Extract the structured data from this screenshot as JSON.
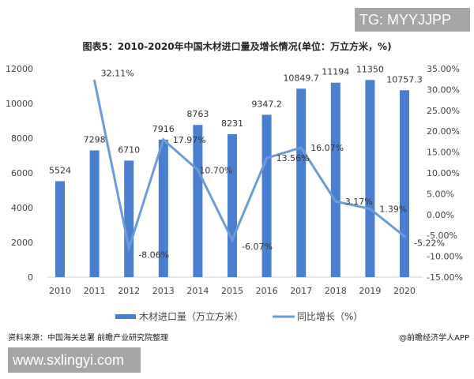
{
  "watermark_top": "TG: MYYJJPP",
  "watermark_bottom": "www.sxlingyi.com",
  "source": "资料来源：中国海关总署 前瞻产业研究院整理",
  "credit": "@前瞻经济学人APP",
  "chart_data": {
    "type": "bar+line",
    "title": "图表5：2010-2020年中国木材进口量及增长情况(单位：万立方米，%)",
    "categories": [
      "2010",
      "2011",
      "2012",
      "2013",
      "2014",
      "2015",
      "2016",
      "2017",
      "2018",
      "2019",
      "2020"
    ],
    "series": [
      {
        "name": "木材进口量（万立方米）",
        "type": "bar",
        "axis": "left",
        "color": "#4a7fd0",
        "values": [
          5524,
          7298,
          6710,
          7916,
          8763,
          8231,
          9347.2,
          10849.7,
          11194,
          11350,
          10757.3
        ],
        "labels": [
          "5524",
          "7298",
          "6710",
          "7916",
          "8763",
          "8231",
          "9347.2",
          "10849.7",
          "11194",
          "11350",
          "10757.3"
        ]
      },
      {
        "name": "同比增长（%）",
        "type": "line",
        "axis": "right",
        "color": "#6b9bd8",
        "values": [
          null,
          32.11,
          -8.06,
          17.97,
          10.7,
          -6.07,
          13.56,
          16.07,
          3.17,
          1.39,
          -5.22
        ],
        "labels": [
          "",
          "32.11%",
          "-8.06%",
          "17.97%",
          "10.70%",
          "-6.07%",
          "13.56%",
          "16.07%",
          "3.17%",
          "1.39%",
          "-5.22%"
        ]
      }
    ],
    "left_axis": {
      "range": [
        0,
        12000
      ],
      "ticks": [
        "0",
        "2000",
        "4000",
        "6000",
        "8000",
        "10000",
        "12000"
      ]
    },
    "right_axis": {
      "range": [
        -15,
        35
      ],
      "ticks": [
        "-15.00%",
        "-10.00%",
        "-5.00%",
        "0.00%",
        "5.00%",
        "10.00%",
        "15.00%",
        "20.00%",
        "25.00%",
        "30.00%",
        "35.00%"
      ]
    },
    "grid": false,
    "legend": "bottom"
  }
}
